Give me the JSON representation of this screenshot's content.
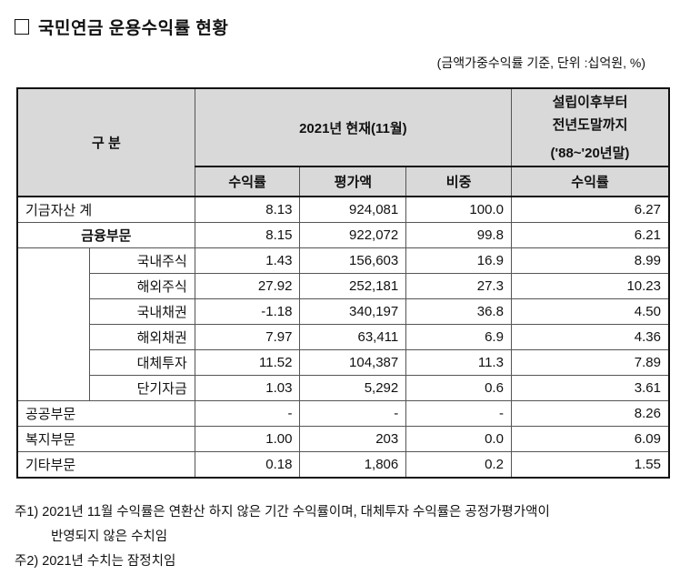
{
  "title": "국민연금 운용수익률 현황",
  "unit_note": "(금액가중수익률 기준, 단위 :십억원, %)",
  "header": {
    "category": "구 분",
    "current": "2021년 현재(11월)",
    "since_l1": "설립이후부터",
    "since_l2": "전년도말까지",
    "since_l3": "('88~'20년말)",
    "cols": [
      "수익률",
      "평가액",
      "비중",
      "수익률"
    ]
  },
  "rows": [
    {
      "label": "기금자산 계",
      "rate": "8.13",
      "value": "924,081",
      "share": "100.0",
      "since": "6.27"
    },
    {
      "label": "금융부문",
      "rate": "8.15",
      "value": "922,072",
      "share": "99.8",
      "since": "6.21"
    },
    {
      "label": "국내주식",
      "rate": "1.43",
      "value": "156,603",
      "share": "16.9",
      "since": "8.99"
    },
    {
      "label": "해외주식",
      "rate": "27.92",
      "value": "252,181",
      "share": "27.3",
      "since": "10.23"
    },
    {
      "label": "국내채권",
      "rate": "-1.18",
      "value": "340,197",
      "share": "36.8",
      "since": "4.50"
    },
    {
      "label": "해외채권",
      "rate": "7.97",
      "value": "63,411",
      "share": "6.9",
      "since": "4.36"
    },
    {
      "label": "대체투자",
      "rate": "11.52",
      "value": "104,387",
      "share": "11.3",
      "since": "7.89"
    },
    {
      "label": "단기자금",
      "rate": "1.03",
      "value": "5,292",
      "share": "0.6",
      "since": "3.61"
    },
    {
      "label": "공공부문",
      "rate": "-",
      "value": "-",
      "share": "-",
      "since": "8.26"
    },
    {
      "label": "복지부문",
      "rate": "1.00",
      "value": "203",
      "share": "0.0",
      "since": "6.09"
    },
    {
      "label": "기타부문",
      "rate": "0.18",
      "value": "1,806",
      "share": "0.2",
      "since": "1.55"
    }
  ],
  "notes": {
    "n1_l1": "주1) 2021년 11월 수익률은 연환산 하지 않은 기간 수익률이며, 대체투자 수익률은 공정가평가액이",
    "n1_l2": "반영되지 않은 수치임",
    "n2": "주2) 2021년 수치는 잠정치임"
  }
}
